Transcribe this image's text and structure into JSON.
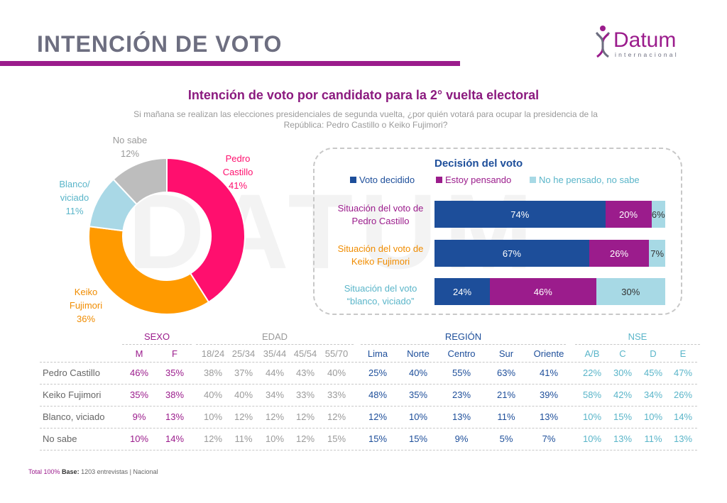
{
  "page": {
    "title": "INTENCIÓN DE VOTO"
  },
  "logo": {
    "name": "Datum",
    "sub": "internacional"
  },
  "watermark": "DATUM",
  "chart_title": "Intención de voto por candidato para la 2° vuelta electoral",
  "chart_subtitle": "Si mañana se realizan las elecciones presidenciales de segunda vuelta, ¿por quién votará para ocupar la presidencia de la República: Pedro Castillo o Keiko Fujimori?",
  "colors": {
    "castillo": "#ff0f6e",
    "fujimori": "#ff9a00",
    "blanco": "#a9d8e6",
    "nosabe": "#bdbdbd",
    "decidido": "#1d4e9a",
    "pensando": "#9b1c8c",
    "nopensado": "#a7d9e5",
    "purple": "#9b1c8c",
    "blue": "#1d4e9a",
    "teal": "#5ab5c9"
  },
  "chart_data": [
    {
      "type": "pie",
      "slices": [
        {
          "name": "Pedro Castillo",
          "value": 41,
          "color": "#ff0f6e"
        },
        {
          "name": "Keiko Fujimori",
          "value": 36,
          "color": "#ff9a00"
        },
        {
          "name": "Blanco/ viciado",
          "value": 11,
          "color": "#a9d8e6"
        },
        {
          "name": "No sabe",
          "value": 12,
          "color": "#bdbdbd"
        }
      ],
      "labels": {
        "castillo": [
          "Pedro",
          "Castillo",
          "41%"
        ],
        "fujimori": [
          "Keiko",
          "Fujimori",
          "36%"
        ],
        "blanco": [
          "Blanco/",
          "viciado",
          "11%"
        ],
        "nosabe": [
          "No sabe",
          "12%"
        ]
      }
    },
    {
      "type": "bar",
      "title": "Decisión del voto",
      "series_names": [
        "Voto decidido",
        "Estoy pensando",
        "No he pensado, no sabe"
      ],
      "rows": [
        {
          "label": [
            "Situación del voto de",
            "Pedro Castillo"
          ],
          "values": [
            74,
            20,
            6
          ],
          "color": "#9b1c8c"
        },
        {
          "label": [
            "Situación del voto de",
            "Keiko Fujimori"
          ],
          "values": [
            67,
            26,
            7
          ],
          "color": "#ff9a00"
        },
        {
          "label": [
            "Situación del voto",
            "“blanco, viciado”"
          ],
          "values": [
            24,
            46,
            30
          ],
          "color": "#5ab5c9"
        }
      ]
    },
    {
      "type": "table",
      "groups": [
        {
          "name": "SEXO",
          "cols": [
            "M",
            "F"
          ],
          "color": "#9b1c8c"
        },
        {
          "name": "EDAD",
          "cols": [
            "18/24",
            "25/34",
            "35/44",
            "45/54",
            "55/70"
          ],
          "color": "#9a9a9a"
        },
        {
          "name": "REGIÓN",
          "cols": [
            "Lima",
            "Norte",
            "Centro",
            "Sur",
            "Oriente"
          ],
          "color": "#1d4e9a"
        },
        {
          "name": "NSE",
          "cols": [
            "A/B",
            "C",
            "D",
            "E"
          ],
          "color": "#5ab5c9"
        }
      ],
      "rows": [
        {
          "label": "Pedro Castillo",
          "values": [
            "46%",
            "35%",
            "38%",
            "37%",
            "44%",
            "43%",
            "40%",
            "25%",
            "40%",
            "55%",
            "63%",
            "41%",
            "22%",
            "30%",
            "45%",
            "47%"
          ]
        },
        {
          "label": "Keiko Fujimori",
          "values": [
            "35%",
            "38%",
            "40%",
            "40%",
            "34%",
            "33%",
            "33%",
            "48%",
            "35%",
            "23%",
            "21%",
            "39%",
            "58%",
            "42%",
            "34%",
            "26%"
          ]
        },
        {
          "label": "Blanco, viciado",
          "values": [
            "9%",
            "13%",
            "10%",
            "12%",
            "12%",
            "12%",
            "12%",
            "12%",
            "10%",
            "13%",
            "11%",
            "13%",
            "10%",
            "15%",
            "10%",
            "14%"
          ]
        },
        {
          "label": "No sabe",
          "values": [
            "10%",
            "14%",
            "12%",
            "11%",
            "10%",
            "12%",
            "15%",
            "15%",
            "15%",
            "9%",
            "5%",
            "7%",
            "10%",
            "13%",
            "11%",
            "13%"
          ]
        }
      ]
    }
  ],
  "footer": {
    "total": "Total 100%",
    "base_label": "Base:",
    "base_text": "1203 entrevistas | Nacional"
  }
}
